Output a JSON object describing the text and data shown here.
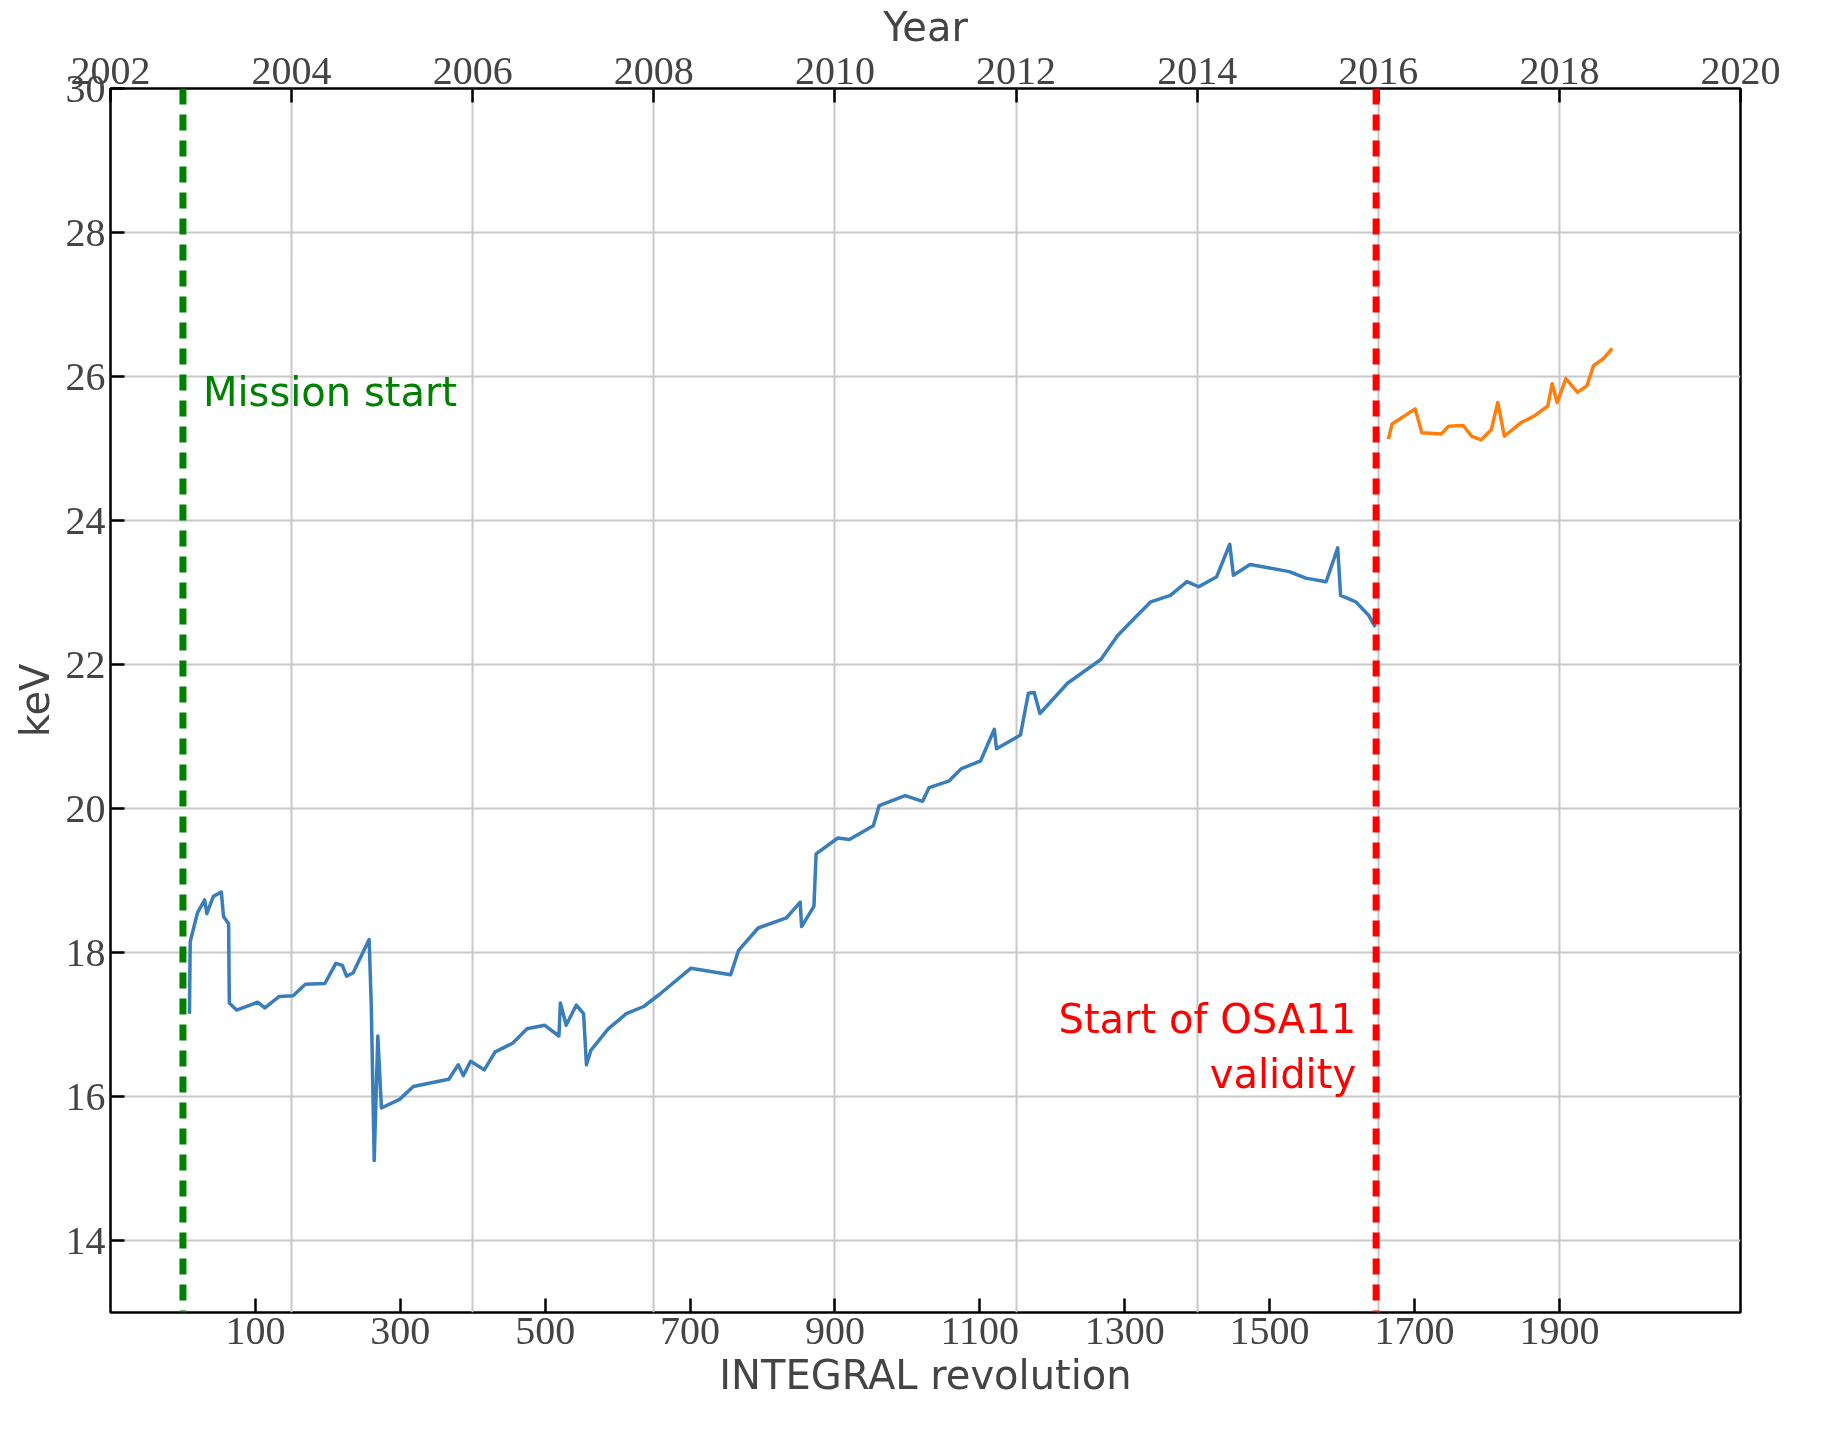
{
  "chart_data": {
    "type": "line",
    "xlabel": "INTEGRAL revolution",
    "ylabel": "keV",
    "x2label": "Year",
    "xlim": [
      -100,
      2150
    ],
    "xticks": [
      100,
      300,
      500,
      700,
      900,
      1100,
      1300,
      1500,
      1700,
      1900
    ],
    "x2lim": [
      2002,
      2020
    ],
    "x2ticks": [
      2002,
      2004,
      2006,
      2008,
      2010,
      2012,
      2014,
      2016,
      2018,
      2020
    ],
    "ylim": [
      13,
      30
    ],
    "yticks": [
      14,
      16,
      18,
      20,
      22,
      24,
      26,
      28,
      30
    ],
    "grid": true,
    "marker": "none",
    "line_style": "solid",
    "series": [
      {
        "color": "#3a7dbb",
        "x": [
          9,
          10,
          20,
          30,
          33,
          42,
          53,
          56,
          63,
          64,
          74,
          103,
          113,
          133,
          152,
          169,
          196,
          211,
          220,
          226,
          235,
          257,
          260,
          264,
          269,
          274,
          299,
          318,
          343,
          367,
          380,
          387,
          397,
          416,
          431,
          455,
          475,
          499,
          519,
          521,
          529,
          543,
          553,
          557,
          563,
          587,
          612,
          636,
          658,
          701,
          756,
          767,
          794,
          833,
          852,
          854,
          871,
          874,
          904,
          920,
          953,
          961,
          997,
          1021,
          1030,
          1057,
          1074,
          1101,
          1120,
          1123,
          1156,
          1167,
          1175,
          1183,
          1221,
          1267,
          1290,
          1313,
          1336,
          1363,
          1386,
          1402,
          1427,
          1445,
          1450,
          1473,
          1500,
          1527,
          1550,
          1578,
          1594,
          1598,
          1619,
          1637,
          1646
        ],
        "values": [
          17.15,
          18.15,
          18.55,
          18.73,
          18.54,
          18.78,
          18.84,
          18.5,
          18.4,
          17.3,
          17.2,
          17.31,
          17.23,
          17.39,
          17.4,
          17.56,
          17.57,
          17.85,
          17.82,
          17.67,
          17.72,
          18.18,
          17.25,
          15.11,
          16.84,
          15.84,
          15.96,
          16.14,
          16.19,
          16.24,
          16.44,
          16.29,
          16.49,
          16.37,
          16.62,
          16.74,
          16.94,
          16.99,
          16.84,
          17.3,
          16.99,
          17.27,
          17.15,
          16.44,
          16.64,
          16.94,
          17.15,
          17.25,
          17.42,
          17.78,
          17.69,
          18.03,
          18.34,
          18.48,
          18.7,
          18.36,
          18.64,
          19.37,
          19.59,
          19.57,
          19.76,
          20.04,
          20.18,
          20.1,
          20.29,
          20.38,
          20.55,
          20.66,
          21.1,
          20.83,
          21.02,
          21.6,
          21.61,
          21.32,
          21.74,
          22.07,
          22.4,
          22.64,
          22.87,
          22.96,
          23.15,
          23.08,
          23.22,
          23.67,
          23.24,
          23.39,
          23.34,
          23.29,
          23.2,
          23.15,
          23.62,
          22.96,
          22.87,
          22.68,
          22.52
        ]
      },
      {
        "color": "#ff7f0e",
        "x": [
          1664,
          1669,
          1701,
          1710,
          1737,
          1747,
          1767,
          1779,
          1792,
          1806,
          1815,
          1824,
          1847,
          1865,
          1884,
          1890,
          1897,
          1909,
          1925,
          1938,
          1947,
          1961,
          1973
        ],
        "values": [
          25.13,
          25.34,
          25.55,
          25.22,
          25.2,
          25.31,
          25.32,
          25.17,
          25.12,
          25.26,
          25.64,
          25.17,
          25.36,
          25.45,
          25.59,
          25.9,
          25.64,
          25.97,
          25.78,
          25.87,
          26.15,
          26.25,
          26.39
        ]
      }
    ],
    "ref_lines": [
      {
        "axis": "x",
        "value": 0,
        "label": "Mission start",
        "color": "#008000",
        "line_style": "dashed"
      },
      {
        "axis": "x",
        "value": 1647,
        "label": "Start of OSA11\nvalidity",
        "color": "#ff0000",
        "line_style": "dashed"
      }
    ]
  }
}
